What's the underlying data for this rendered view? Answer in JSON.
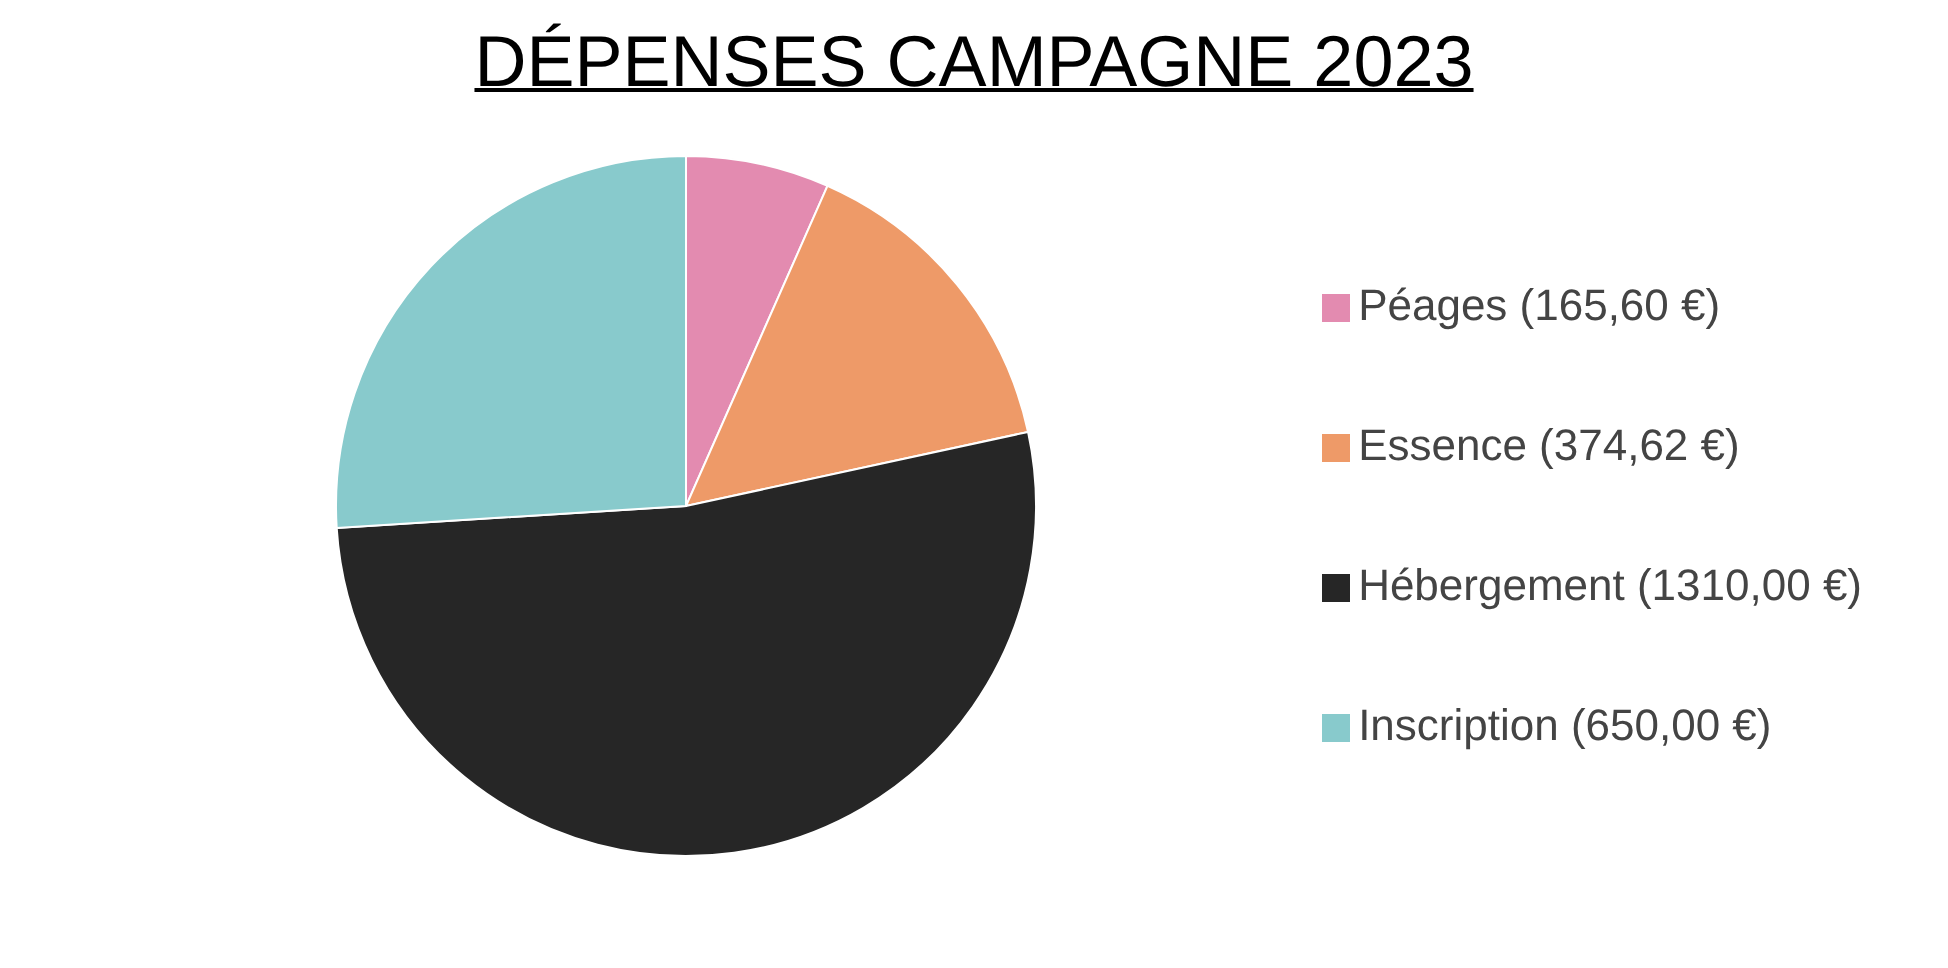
{
  "chart_data": {
    "type": "pie",
    "title": "DÉPENSES CAMPAGNE 2023",
    "categories": [
      "Péages (165,60 €)",
      "Essence (374,62 €)",
      "Hébergement (1310,00 €)",
      "Inscription (650,00 €)"
    ],
    "values": [
      165.6,
      374.62,
      1310.0,
      650.0
    ],
    "colors": [
      "#e38bb0",
      "#ee9a68",
      "#262626",
      "#88cacc"
    ],
    "legend": "right"
  }
}
